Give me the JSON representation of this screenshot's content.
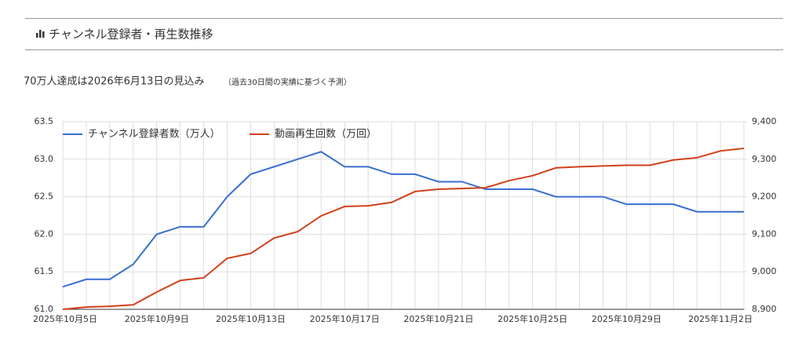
{
  "header": {
    "title": "チャンネル登録者・再生数推移"
  },
  "subtitle": "70万人達成は2026年6月13日の見込み",
  "subtitle_note": "（過去30日間の実績に基づく予測）",
  "chart_data": {
    "type": "line",
    "categories": [
      "2025年10月5日",
      null,
      null,
      null,
      "2025年10月9日",
      null,
      null,
      null,
      "2025年10月13日",
      null,
      null,
      null,
      "2025年10月17日",
      null,
      null,
      null,
      "2025年10月21日",
      null,
      null,
      null,
      "2025年10月25日",
      null,
      null,
      null,
      "2025年10月29日",
      null,
      null,
      null,
      "2025年11月2日",
      null
    ],
    "series": [
      {
        "name": "チャンネル登録者数（万人）",
        "color": "#3a6fcf",
        "axis": "y",
        "values": [
          61.3,
          61.4,
          61.4,
          61.6,
          62.0,
          62.1,
          62.1,
          62.5,
          62.8,
          62.9,
          63.0,
          63.1,
          62.9,
          62.9,
          62.8,
          62.8,
          62.7,
          62.7,
          62.6,
          62.6,
          62.6,
          62.5,
          62.5,
          62.5,
          62.4,
          62.4,
          62.4,
          62.3,
          62.3,
          62.3
        ]
      },
      {
        "name": "動画再生回数（万回）",
        "color": "#d2401b",
        "axis": "y2",
        "values": [
          8900,
          8906,
          8908,
          8912,
          8946,
          8977,
          8984,
          9036,
          9049,
          9090,
          9107,
          9149,
          9174,
          9176,
          9185,
          9214,
          9220,
          9222,
          9224,
          9243,
          9256,
          9277,
          9280,
          9282,
          9284,
          9284,
          9298,
          9304,
          9322,
          9329
        ]
      }
    ],
    "ylim": [
      61.0,
      63.5
    ],
    "yticks": [
      {
        "value": 61,
        "label": "61.0"
      },
      61.5,
      {
        "value": 62,
        "label": "62.0"
      },
      62.5,
      {
        "value": 63,
        "label": "63.0"
      },
      63.5
    ],
    "y2lim": [
      8900,
      9400
    ],
    "y2ticks": [
      {
        "value": 8900,
        "label": "8,900"
      },
      {
        "value": 9000,
        "label": "9,000"
      },
      {
        "value": 9100,
        "label": "9,100"
      },
      {
        "value": 9200,
        "label": "9,200"
      },
      {
        "value": 9300,
        "label": "9,300"
      },
      {
        "value": 9400,
        "label": "9,400"
      }
    ],
    "grid": true,
    "legend": "top-left"
  }
}
